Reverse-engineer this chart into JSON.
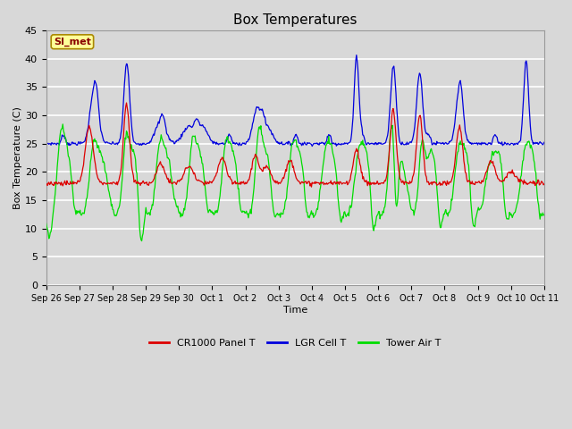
{
  "title": "Box Temperatures",
  "xlabel": "Time",
  "ylabel": "Box Temperature (C)",
  "ylim": [
    0,
    45
  ],
  "yticks": [
    0,
    5,
    10,
    15,
    20,
    25,
    30,
    35,
    40,
    45
  ],
  "x_labels": [
    "Sep 26",
    "Sep 27",
    "Sep 28",
    "Sep 29",
    "Sep 30",
    "Oct 1",
    "Oct 2",
    "Oct 3",
    "Oct 4",
    "Oct 5",
    "Oct 6",
    "Oct 7",
    "Oct 8",
    "Oct 9",
    "Oct 10",
    "Oct 11"
  ],
  "bg_color": "#d8d8d8",
  "plot_bg_color": "#d8d8d8",
  "grid_color": "#ffffff",
  "line_colors": {
    "cr1000": "#dd0000",
    "lgr": "#0000dd",
    "tower": "#00dd00"
  },
  "legend_labels": [
    "CR1000 Panel T",
    "LGR Cell T",
    "Tower Air T"
  ],
  "watermark_text": "SI_met",
  "watermark_bg": "#ffff99",
  "watermark_border": "#aa8800",
  "watermark_text_color": "#880000"
}
